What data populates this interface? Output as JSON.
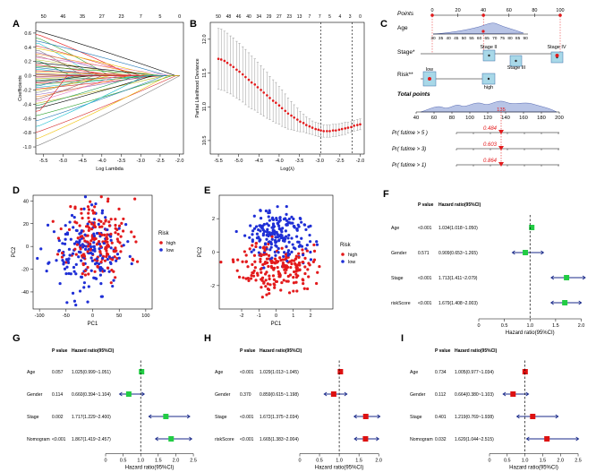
{
  "panel_labels": [
    "A",
    "B",
    "C",
    "D",
    "E",
    "F",
    "G",
    "H",
    "I"
  ],
  "chart_data": [
    {
      "panel": "A",
      "type": "line",
      "title": "",
      "xlabel": "Log Lambda",
      "ylabel": "Coefficients",
      "xlim": [
        -5.7,
        -1.9
      ],
      "ylim": [
        -1.1,
        0.75
      ],
      "x_ticks": [
        -5.5,
        -5.0,
        -4.5,
        -4.0,
        -3.5,
        -3.0,
        -2.5,
        -2.0
      ],
      "x_tick_labels": [
        "-5.5",
        "-5.0",
        "-4.5",
        "-4.0",
        "-3.5",
        "-3.0",
        "-2.5",
        "-2.0"
      ],
      "y_ticks": [
        -1.0,
        -0.8,
        -0.6,
        -0.4,
        -0.2,
        0.0,
        0.2,
        0.4,
        0.6
      ],
      "y_tick_labels": [
        "-1.0",
        "-0.8",
        "-0.6",
        "-0.4",
        "-0.2",
        "0.0",
        "0.2",
        "0.4",
        "0.6"
      ],
      "top_ticks": [
        -5.5,
        -5.0,
        -4.5,
        -4.0,
        -3.5,
        -3.0,
        -2.5,
        -2.0
      ],
      "top_tick_labels": [
        "50",
        "46",
        "35",
        "27",
        "23",
        "7",
        "5",
        "0"
      ],
      "series_count": 50,
      "path_end": -2.0,
      "start_x": -5.6,
      "start_values": [
        0.62,
        0.57,
        0.52,
        0.48,
        0.45,
        0.41,
        0.38,
        0.35,
        0.32,
        0.3,
        0.27,
        0.25,
        0.22,
        0.2,
        0.18,
        0.15,
        0.13,
        0.11,
        0.09,
        0.07,
        0.05,
        0.03,
        0.02,
        0.01,
        -0.01,
        -0.02,
        -0.04,
        -0.06,
        -0.08,
        -0.1,
        -0.12,
        -0.14,
        -0.16,
        -0.18,
        -0.2,
        -0.23,
        -0.26,
        -0.29,
        -0.32,
        -0.35,
        -0.38,
        -0.41,
        -0.45,
        -0.49,
        -0.55,
        -0.62,
        -0.7,
        -0.78,
        -0.87,
        -0.97
      ],
      "zero_points": [
        -2.1,
        -3.2,
        -3.8,
        -2.3,
        -4.2,
        -3.0,
        -2.6,
        -4.5,
        -3.5,
        -2.8,
        -4.0,
        -2.2,
        -3.3,
        -4.8,
        -2.5,
        -3.6,
        -2.4,
        -3.9,
        -4.4,
        -2.9,
        -3.1,
        -4.6,
        -2.7,
        -3.4,
        -5.0,
        -3.7,
        -4.1,
        -2.3,
        -4.3,
        -3.2,
        -2.6,
        -4.7,
        -3.0,
        -2.5,
        -3.8,
        -4.2,
        -2.8,
        -3.3,
        -4.0,
        -3.6,
        -2.4,
        -3.1,
        -2.7,
        -4.9,
        -2.2,
        -2.4,
        -2.9,
        -2.1,
        -2.3,
        -2.0
      ]
    },
    {
      "panel": "B",
      "type": "line",
      "title": "",
      "xlabel": "Log(λ)",
      "ylabel": "Partial Likelihood Deviance",
      "xlim": [
        -5.7,
        -1.9
      ],
      "ylim": [
        10.3,
        12.25
      ],
      "x_ticks": [
        -5.5,
        -5.0,
        -4.5,
        -4.0,
        -3.5,
        -3.0,
        -2.5,
        -2.0
      ],
      "x_tick_labels": [
        "-5.5",
        "-5.0",
        "-4.5",
        "-4.0",
        "-3.5",
        "-3.0",
        "-2.5",
        "-2.0"
      ],
      "y_ticks": [
        10.5,
        11.0,
        11.5,
        12.0
      ],
      "y_tick_labels": [
        "10.5",
        "11.0",
        "11.5",
        "12.0"
      ],
      "top_ticks": [
        -5.5,
        -5.25,
        -5.0,
        -4.75,
        -4.5,
        -4.25,
        -4.0,
        -3.75,
        -3.5,
        -3.25,
        -3.0,
        -2.75,
        -2.5,
        -2.25,
        -2.0
      ],
      "top_tick_labels": [
        "50",
        "48",
        "46",
        "40",
        "34",
        "29",
        "27",
        "23",
        "13",
        "7",
        "7",
        "5",
        "4",
        "3",
        "0"
      ],
      "vlines": [
        -2.97,
        -2.2
      ],
      "x": [
        -5.5,
        -5.43,
        -5.35,
        -5.28,
        -5.2,
        -5.13,
        -5.05,
        -4.98,
        -4.9,
        -4.83,
        -4.75,
        -4.68,
        -4.6,
        -4.53,
        -4.45,
        -4.38,
        -4.3,
        -4.23,
        -4.15,
        -4.08,
        -4.0,
        -3.93,
        -3.85,
        -3.78,
        -3.7,
        -3.63,
        -3.55,
        -3.48,
        -3.4,
        -3.33,
        -3.25,
        -3.18,
        -3.1,
        -3.03,
        -2.97,
        -2.9,
        -2.82,
        -2.75,
        -2.67,
        -2.6,
        -2.52,
        -2.45,
        -2.37,
        -2.3,
        -2.22,
        -2.15,
        -2.07,
        -2.0
      ],
      "values": [
        11.71,
        11.7,
        11.68,
        11.65,
        11.62,
        11.59,
        11.55,
        11.52,
        11.48,
        11.44,
        11.4,
        11.36,
        11.33,
        11.29,
        11.25,
        11.21,
        11.17,
        11.13,
        11.09,
        11.06,
        11.02,
        10.98,
        10.94,
        10.9,
        10.87,
        10.84,
        10.81,
        10.78,
        10.76,
        10.73,
        10.71,
        10.69,
        10.67,
        10.66,
        10.65,
        10.64,
        10.64,
        10.64,
        10.65,
        10.65,
        10.66,
        10.67,
        10.68,
        10.69,
        10.7,
        10.72,
        10.73,
        10.74
      ],
      "errors": [
        0.45,
        0.45,
        0.44,
        0.44,
        0.43,
        0.43,
        0.42,
        0.42,
        0.41,
        0.41,
        0.4,
        0.39,
        0.38,
        0.37,
        0.36,
        0.35,
        0.34,
        0.32,
        0.31,
        0.3,
        0.28,
        0.27,
        0.25,
        0.23,
        0.21,
        0.19,
        0.17,
        0.15,
        0.13,
        0.12,
        0.11,
        0.1,
        0.1,
        0.1,
        0.09,
        0.09,
        0.09,
        0.09,
        0.09,
        0.09,
        0.09,
        0.09,
        0.09,
        0.08,
        0.08,
        0.08,
        0.08,
        0.08
      ]
    },
    {
      "panel": "C",
      "type": "nomogram",
      "rows": [
        {
          "label": "Points",
          "ticks": [
            "0",
            "20",
            "40",
            "60",
            "80",
            "100"
          ]
        },
        {
          "label": "Age",
          "ticks": [
            "30",
            "35",
            "40",
            "45",
            "50",
            "55",
            "60",
            "65",
            "70",
            "75",
            "80",
            "85",
            "90"
          ]
        },
        {
          "label": "Stage*",
          "ticks": [
            "Stage II",
            "Stage III",
            "Stage IV"
          ]
        },
        {
          "label": "Risk**",
          "ticks": [
            "low",
            "high"
          ]
        },
        {
          "label": "Total points",
          "ticks": [
            "40",
            "60",
            "80",
            "100",
            "120",
            "140",
            "160",
            "180",
            "200"
          ]
        },
        {
          "label": "Pr( futime > 5 )",
          "value": "0.484"
        },
        {
          "label": "Pr( futime > 3)",
          "value": "0.603"
        },
        {
          "label": "Pr( futime > 1)",
          "value": "0.864"
        }
      ],
      "total_points_marker": "135"
    },
    {
      "panel": "D",
      "type": "scatter",
      "xlabel": "PC1",
      "ylabel": "PC2",
      "xlim": [
        -112,
        112
      ],
      "ylim": [
        -55,
        45
      ],
      "x_ticks": [
        -100,
        -50,
        0,
        50,
        100
      ],
      "x_tick_labels": [
        "-100",
        "-50",
        "0",
        "50",
        "100"
      ],
      "y_ticks": [
        -40,
        -20,
        0,
        20,
        40
      ],
      "y_tick_labels": [
        "-40",
        "-20",
        "0",
        "20",
        "40"
      ],
      "legend_title": "Risk",
      "series": [
        {
          "name": "high",
          "color": "#e31a1c",
          "cx": 10,
          "cy": 6,
          "sx": 30,
          "sy": 18,
          "n": 180,
          "seed": 11
        },
        {
          "name": "low",
          "color": "#1f2fd6",
          "cx": -12,
          "cy": -6,
          "sx": 34,
          "sy": 17,
          "n": 180,
          "seed": 23
        }
      ]
    },
    {
      "panel": "E",
      "type": "scatter",
      "xlabel": "PC1",
      "ylabel": "PC2",
      "xlim": [
        -3.3,
        3.3
      ],
      "ylim": [
        -3.4,
        3.4
      ],
      "x_ticks": [
        -2,
        -1,
        0,
        1,
        2
      ],
      "x_tick_labels": [
        "-2",
        "-1",
        "0",
        "1",
        "2"
      ],
      "y_ticks": [
        -2,
        0,
        2
      ],
      "y_tick_labels": [
        "-2",
        "0",
        "2"
      ],
      "legend_title": "Risk",
      "series": [
        {
          "name": "high",
          "color": "#e31a1c",
          "cx": 0,
          "cy": -0.9,
          "sx": 1.05,
          "sy": 0.75,
          "n": 200,
          "seed": 37
        },
        {
          "name": "low",
          "color": "#1f2fd6",
          "cx": 0.1,
          "cy": 1.0,
          "sx": 0.95,
          "sy": 0.8,
          "n": 200,
          "seed": 51
        }
      ]
    },
    {
      "panel": "F",
      "type": "forest",
      "header_p": "P value",
      "header_hr": "Hazard ratio(95%CI)",
      "xlabel": "Hazard ratio(95%CI)",
      "xlim": [
        0,
        2.2
      ],
      "x_ticks": [
        0,
        0.5,
        1.0,
        1.5,
        2.0
      ],
      "x_tick_labels": [
        "0",
        "0.5",
        "1.0",
        "1.5",
        "2.0"
      ],
      "rows": [
        {
          "label": "Age",
          "p": "<0.001",
          "text": "1.034(1.018~1.050)",
          "hr": 1.034,
          "lo": 1.018,
          "hi": 1.05,
          "color": "#22cc44"
        },
        {
          "label": "Gender",
          "p": "0.571",
          "text": "0.909(0.653~1.265)",
          "hr": 0.909,
          "lo": 0.653,
          "hi": 1.265,
          "color": "#22cc44"
        },
        {
          "label": "Stage",
          "p": "<0.001",
          "text": "1.713(1.411~2.079)",
          "hr": 1.713,
          "lo": 1.411,
          "hi": 2.079,
          "color": "#22cc44"
        },
        {
          "label": "riskScore",
          "p": "<0.001",
          "text": "1.679(1.408~2.003)",
          "hr": 1.679,
          "lo": 1.408,
          "hi": 2.003,
          "color": "#22cc44"
        }
      ]
    },
    {
      "panel": "G",
      "type": "forest",
      "header_p": "P value",
      "header_hr": "Hazard ratio(95%CI)",
      "xlabel": "Hazard ratio(95%CI)",
      "xlim": [
        0,
        2.6
      ],
      "x_ticks": [
        0,
        0.5,
        1.0,
        1.5,
        2.0,
        2.5
      ],
      "x_tick_labels": [
        "0",
        "0.5",
        "1.0",
        "1.5",
        "2.0",
        "2.5"
      ],
      "rows": [
        {
          "label": "Age",
          "p": "0.057",
          "text": "1.025(0.999~1.051)",
          "hr": 1.025,
          "lo": 0.999,
          "hi": 1.051,
          "color": "#22cc44"
        },
        {
          "label": "Gender",
          "p": "0.114",
          "text": "0.660(0.394~1.104)",
          "hr": 0.66,
          "lo": 0.394,
          "hi": 1.104,
          "color": "#22cc44"
        },
        {
          "label": "Stage",
          "p": "0.002",
          "text": "1.717(1.229~2.400)",
          "hr": 1.717,
          "lo": 1.229,
          "hi": 2.4,
          "color": "#22cc44"
        },
        {
          "label": "Nomogram",
          "p": "<0.001",
          "text": "1.867(1.419~2.457)",
          "hr": 1.867,
          "lo": 1.419,
          "hi": 2.457,
          "color": "#22cc44"
        }
      ]
    },
    {
      "panel": "H",
      "type": "forest",
      "header_p": "P value",
      "header_hr": "Hazard ratio(95%CI)",
      "xlabel": "Hazard ratio(95%CI)",
      "xlim": [
        0,
        2.2
      ],
      "x_ticks": [
        0,
        0.5,
        1.0,
        1.5,
        2.0
      ],
      "x_tick_labels": [
        "0",
        "0.5",
        "1.0",
        "1.5",
        "2.0"
      ],
      "rows": [
        {
          "label": "Age",
          "p": "<0.001",
          "text": "1.029(1.013~1.045)",
          "hr": 1.029,
          "lo": 1.013,
          "hi": 1.045,
          "color": "#dd1111"
        },
        {
          "label": "Gender",
          "p": "0.370",
          "text": "0.859(0.615~1.198)",
          "hr": 0.859,
          "lo": 0.615,
          "hi": 1.198,
          "color": "#dd1111"
        },
        {
          "label": "Stage",
          "p": "<0.001",
          "text": "1.672(1.375~2.034)",
          "hr": 1.672,
          "lo": 1.375,
          "hi": 2.034,
          "color": "#dd1111"
        },
        {
          "label": "riskScore",
          "p": "<0.001",
          "text": "1.665(1.383~2.004)",
          "hr": 1.665,
          "lo": 1.383,
          "hi": 2.004,
          "color": "#dd1111"
        }
      ]
    },
    {
      "panel": "I",
      "type": "forest",
      "header_p": "P value",
      "header_hr": "Hazard ratio(95%CI)",
      "xlabel": "Hazard ratio(95%CI)",
      "xlim": [
        0,
        2.6
      ],
      "x_ticks": [
        0,
        0.5,
        1.0,
        1.5,
        2.0,
        2.5
      ],
      "x_tick_labels": [
        "0",
        "0.5",
        "1.0",
        "1.5",
        "2.0",
        "2.5"
      ],
      "rows": [
        {
          "label": "Age",
          "p": "0.734",
          "text": "1.005(0.977~1.034)",
          "hr": 1.005,
          "lo": 0.977,
          "hi": 1.034,
          "color": "#dd1111"
        },
        {
          "label": "Gender",
          "p": "0.112",
          "text": "0.664(0.380~1.103)",
          "hr": 0.664,
          "lo": 0.38,
          "hi": 1.103,
          "color": "#dd1111"
        },
        {
          "label": "Stage",
          "p": "0.401",
          "text": "1.219(0.769~1.938)",
          "hr": 1.219,
          "lo": 0.769,
          "hi": 1.938,
          "color": "#dd1111"
        },
        {
          "label": "Nomogram",
          "p": "0.032",
          "text": "1.620(1.044~2.515)",
          "hr": 1.62,
          "lo": 1.044,
          "hi": 2.515,
          "color": "#dd1111"
        }
      ]
    }
  ]
}
